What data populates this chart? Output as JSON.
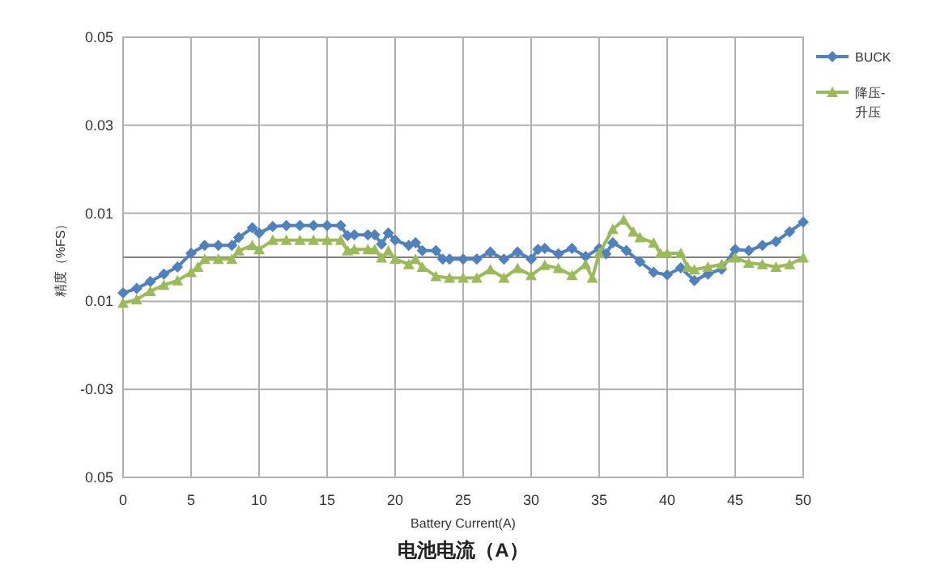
{
  "chart_data": {
    "type": "line",
    "xlabel": "Battery Current(A)",
    "ylabel": "精度（%FS）",
    "annotations": [
      "电池电流（A）"
    ],
    "xlim": [
      0,
      50
    ],
    "xticks": [
      0,
      5,
      10,
      15,
      20,
      25,
      30,
      35,
      40,
      45,
      50
    ],
    "ylim": [
      -0.05,
      0.05
    ],
    "yticks": [
      {
        "value": -0.05,
        "label": "0.05"
      },
      {
        "value": -0.03,
        "label": "-0.03"
      },
      {
        "value": -0.01,
        "label": "0.01"
      },
      {
        "value": 0,
        "label": null
      },
      {
        "value": 0.01,
        "label": "0.01"
      },
      {
        "value": 0.03,
        "label": "0.03"
      },
      {
        "value": 0.05,
        "label": "0.05"
      }
    ],
    "grid": true,
    "legend": "right",
    "line_style": "solid",
    "series": [
      {
        "name": "BUCK",
        "color": "#4f81bd",
        "marker": "diamond",
        "x": [
          0,
          1,
          2,
          3,
          4,
          5,
          6,
          7,
          8,
          8.5,
          9.5,
          10,
          11,
          12,
          13,
          14,
          15,
          16,
          16.5,
          17,
          18,
          18.5,
          19,
          19.5,
          20,
          21,
          21.5,
          22,
          23,
          23.5,
          24,
          25,
          26,
          27,
          28,
          29,
          30,
          30.5,
          31,
          32,
          33,
          34,
          35,
          35.5,
          36,
          37,
          38,
          39,
          40,
          41,
          42,
          43,
          44,
          45,
          46,
          47,
          48,
          49,
          50
        ],
        "values": [
          -0.0081,
          -0.0071,
          -0.0055,
          -0.0038,
          -0.0022,
          0.0009,
          0.0027,
          0.0027,
          0.0027,
          0.0045,
          0.0067,
          0.0055,
          0.007,
          0.0072,
          0.0072,
          0.0072,
          0.0072,
          0.0072,
          0.0049,
          0.0051,
          0.0051,
          0.0051,
          0.003,
          0.0055,
          0.0039,
          0.0027,
          0.0033,
          0.0015,
          0.0015,
          -0.0004,
          -0.0004,
          -0.0004,
          -0.0004,
          0.0012,
          -0.0004,
          0.0012,
          -0.0004,
          0.0018,
          0.002,
          0.0008,
          0.002,
          0.0002,
          0.002,
          0.0008,
          0.0033,
          0.0015,
          -0.001,
          -0.0034,
          -0.004,
          -0.0024,
          -0.0053,
          -0.0038,
          -0.0027,
          0.0018,
          0.0015,
          0.0027,
          0.0036,
          0.0058,
          0.008
        ]
      },
      {
        "name": "降压-升压",
        "color": "#9bbb59",
        "marker": "triangle",
        "x": [
          0,
          1,
          2,
          3,
          4,
          5,
          5.5,
          6,
          7,
          8,
          8.5,
          9.5,
          10,
          11,
          12,
          13,
          14,
          15,
          16,
          16.5,
          17,
          18,
          18.5,
          19,
          19.5,
          20,
          21,
          21.5,
          22,
          23,
          24,
          25,
          26,
          27,
          28,
          29,
          30,
          31,
          32,
          33,
          34,
          34.5,
          35,
          36,
          36.8,
          37.5,
          38,
          39,
          39.5,
          40,
          41,
          41.5,
          42,
          43,
          44,
          45,
          46,
          47,
          48,
          49,
          50
        ],
        "values": [
          -0.0104,
          -0.0096,
          -0.0077,
          -0.0063,
          -0.0053,
          -0.0034,
          -0.0022,
          -0.0004,
          -0.0004,
          -0.0004,
          0.0015,
          0.0027,
          0.0018,
          0.0039,
          0.0039,
          0.0039,
          0.0039,
          0.0039,
          0.0039,
          0.0015,
          0.0018,
          0.0018,
          0.0018,
          -0.0001,
          0.0015,
          -0.0004,
          -0.0016,
          -0.0004,
          -0.0022,
          -0.0043,
          -0.0047,
          -0.0047,
          -0.0047,
          -0.0028,
          -0.0047,
          -0.0025,
          -0.0041,
          -0.0018,
          -0.0025,
          -0.0041,
          -0.0016,
          -0.0047,
          0.0009,
          0.0064,
          0.0085,
          0.0058,
          0.0045,
          0.0033,
          0.0009,
          0.0009,
          0.0009,
          -0.0022,
          -0.0028,
          -0.0022,
          -0.0016,
          -0.0001,
          -0.0013,
          -0.0016,
          -0.0022,
          -0.0016,
          -0.0001
        ]
      }
    ]
  }
}
